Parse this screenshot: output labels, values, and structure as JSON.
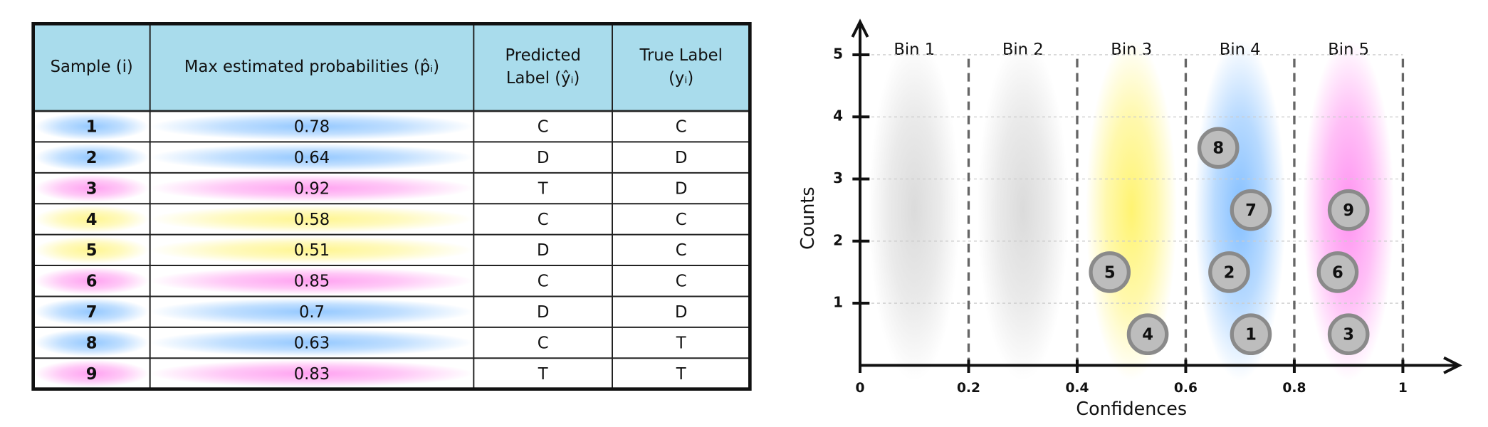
{
  "table": {
    "header": [
      [
        "Sample (i)"
      ],
      [
        "Max estimated probabilities (p̂ᵢ)"
      ],
      [
        "Predicted",
        "Label (ŷᵢ)"
      ],
      [
        "True Label",
        "(yᵢ)"
      ]
    ],
    "rows": [
      [
        1,
        0.78,
        "C",
        "C"
      ],
      [
        2,
        0.64,
        "D",
        "D"
      ],
      [
        3,
        0.92,
        "T",
        "D"
      ],
      [
        4,
        0.58,
        "C",
        "C"
      ],
      [
        5,
        0.51,
        "D",
        "C"
      ],
      [
        6,
        0.85,
        "C",
        "C"
      ],
      [
        7,
        0.7,
        "D",
        "D"
      ],
      [
        8,
        0.63,
        "C",
        "T"
      ],
      [
        9,
        0.83,
        "T",
        "T"
      ]
    ],
    "row_colors": [
      "#8ec5ff",
      "#8ec5ff",
      "#ff9cf0",
      "#fff58a",
      "#fff58a",
      "#ff9cf0",
      "#8ec5ff",
      "#8ec5ff",
      "#ff9cf0"
    ],
    "header_color": "#a9dcec"
  },
  "chart_data": {
    "type": "scatter",
    "xlabel": "Confidences",
    "ylabel": "Counts",
    "xlim": [
      0,
      1.1
    ],
    "ylim": [
      0,
      5.5
    ],
    "xticks": [
      0,
      0.2,
      0.4,
      0.6,
      0.8,
      1
    ],
    "yticks": [
      1,
      2,
      3,
      4,
      5
    ],
    "bin_labels": [
      "Bin 1",
      "Bin 2",
      "Bin 3",
      "Bin 4",
      "Bin 5"
    ],
    "bin_colors": [
      "#d9d9d9",
      "#d9d9d9",
      "#fff36a",
      "#7ebcff",
      "#ff8cf0"
    ],
    "series": [
      {
        "color": "#bdbdbd",
        "x": [
          0.72,
          0.68,
          0.9,
          0.53,
          0.46,
          0.88,
          0.72,
          0.66,
          0.9
        ],
        "values": [
          0.5,
          1.5,
          0.5,
          0.5,
          1.5,
          1.5,
          2.5,
          3.5,
          2.5
        ],
        "labels": [
          "1",
          "2",
          "3",
          "4",
          "5",
          "6",
          "7",
          "8",
          "9"
        ]
      }
    ]
  }
}
